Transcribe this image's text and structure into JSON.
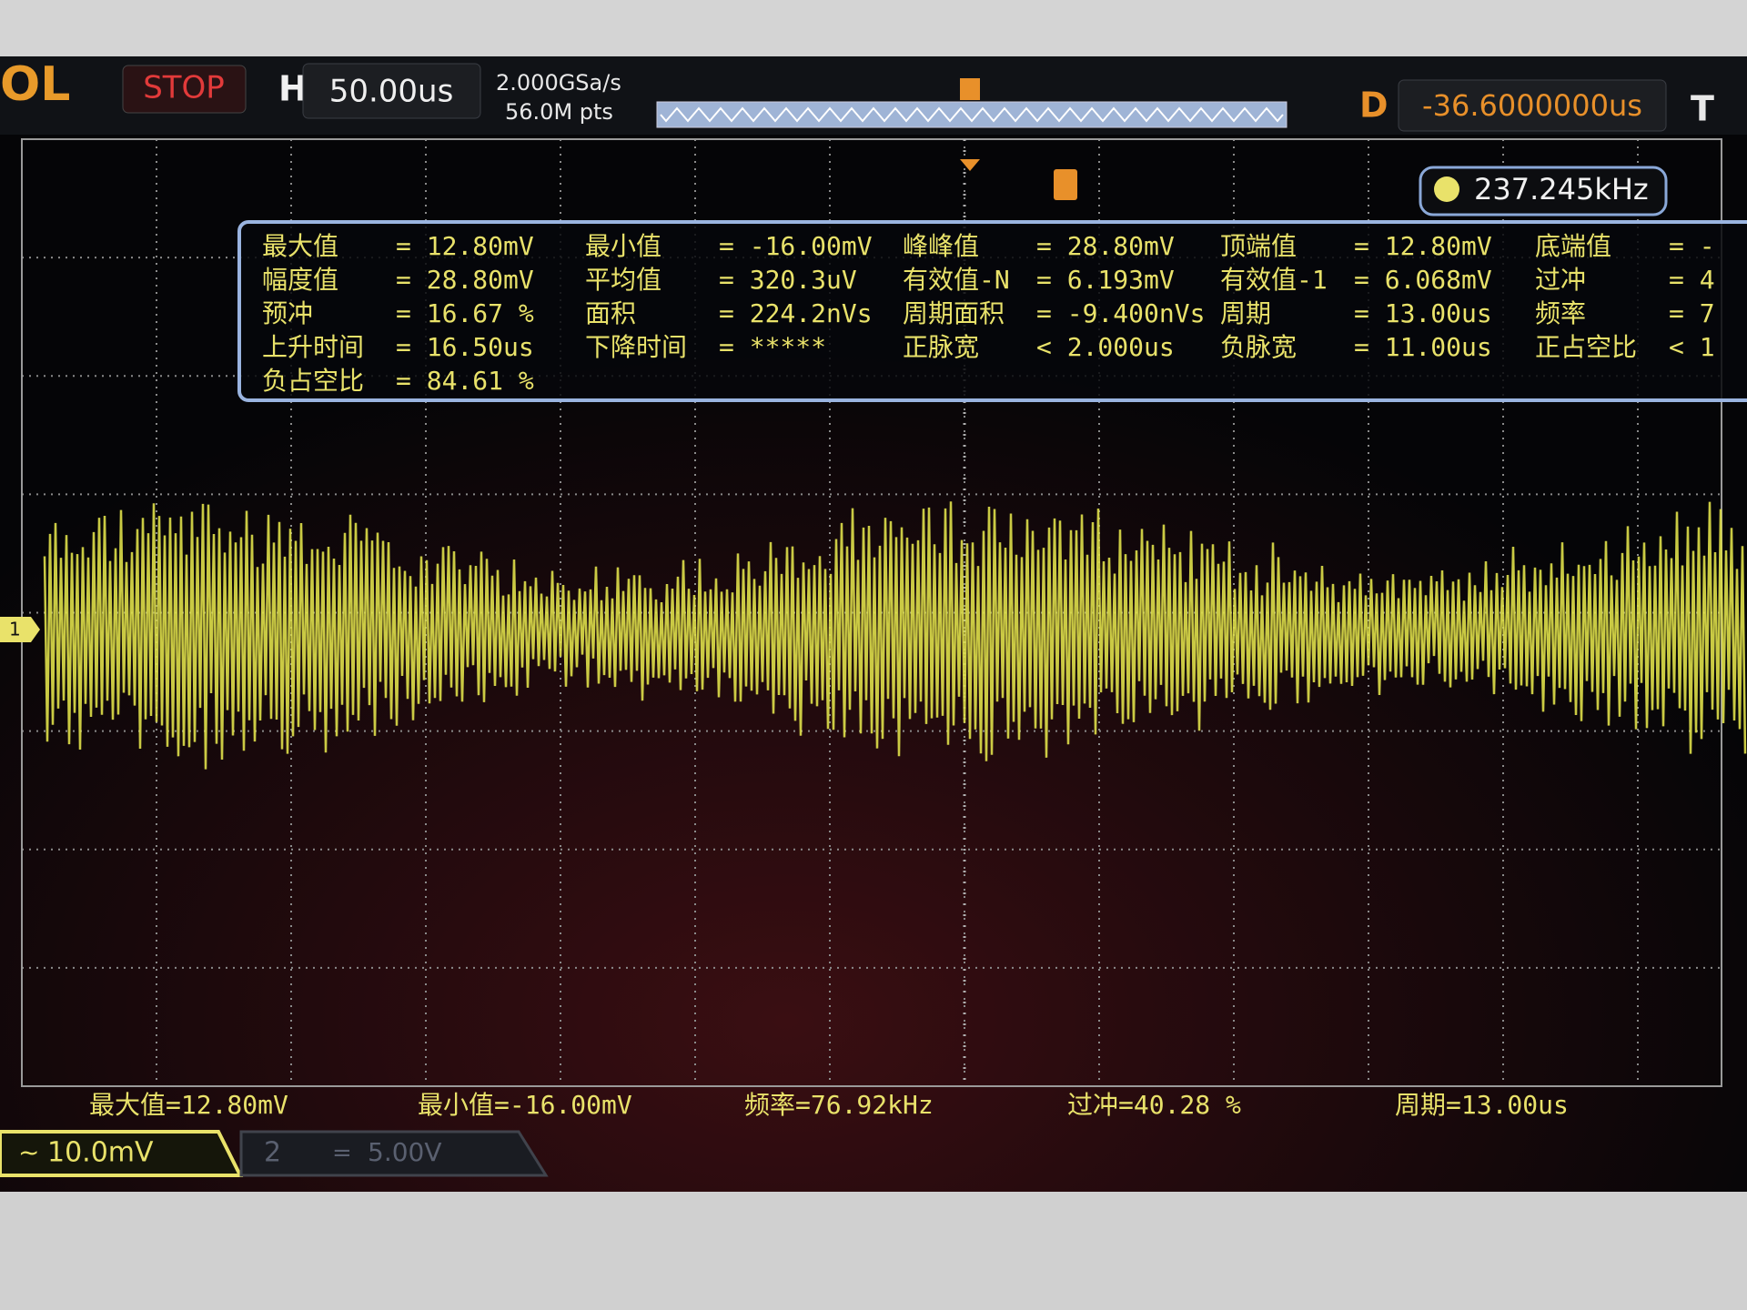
{
  "header": {
    "logo": "OL",
    "status": "STOP",
    "timebase_label": "H",
    "timebase": "50.00us",
    "sample_rate": "2.000GSa/s",
    "memory_depth": "56.0M pts",
    "delay_label": "D",
    "delay": "-36.6000000us",
    "trigger_label": "T"
  },
  "trigger_frequency": "237.245kHz",
  "measurements": {
    "rows": [
      [
        {
          "name": "最大值",
          "value": "= 12.80mV"
        },
        {
          "name": "最小值",
          "value": "= -16.00mV"
        },
        {
          "name": "峰峰值",
          "value": "= 28.80mV"
        },
        {
          "name": "顶端值",
          "value": "= 12.80mV"
        },
        {
          "name": "底端值",
          "value": "= -"
        }
      ],
      [
        {
          "name": "幅度值",
          "value": "= 28.80mV"
        },
        {
          "name": "平均值",
          "value": "= 320.3uV"
        },
        {
          "name": "有效值-N",
          "value": "= 6.193mV"
        },
        {
          "name": "有效值-1",
          "value": "= 6.068mV"
        },
        {
          "name": "过冲",
          "value": "= 4"
        }
      ],
      [
        {
          "name": "预冲",
          "value": "= 16.67 %"
        },
        {
          "name": "面积",
          "value": "= 224.2nVs"
        },
        {
          "name": "周期面积",
          "value": "= -9.400nVs"
        },
        {
          "name": "周期",
          "value": "= 13.00us"
        },
        {
          "name": "频率",
          "value": "= 7"
        }
      ],
      [
        {
          "name": "上升时间",
          "value": "= 16.50us"
        },
        {
          "name": "下降时间",
          "value": "= *****"
        },
        {
          "name": "正脉宽",
          "value": "< 2.000us"
        },
        {
          "name": "负脉宽",
          "value": "= 11.00us"
        },
        {
          "name": "正占空比",
          "value": "< 1"
        }
      ],
      [
        {
          "name": "负占空比",
          "value": "= 84.61 %"
        }
      ]
    ]
  },
  "bottom_measurements": [
    "最大值=12.80mV",
    "最小值=-16.00mV",
    "频率=76.92kHz",
    "过冲=40.28 %",
    "周期=13.00us"
  ],
  "channels": [
    {
      "marker": "1",
      "scale": "10.0mV"
    },
    {
      "marker": "2",
      "scale": "5.00V"
    }
  ]
}
